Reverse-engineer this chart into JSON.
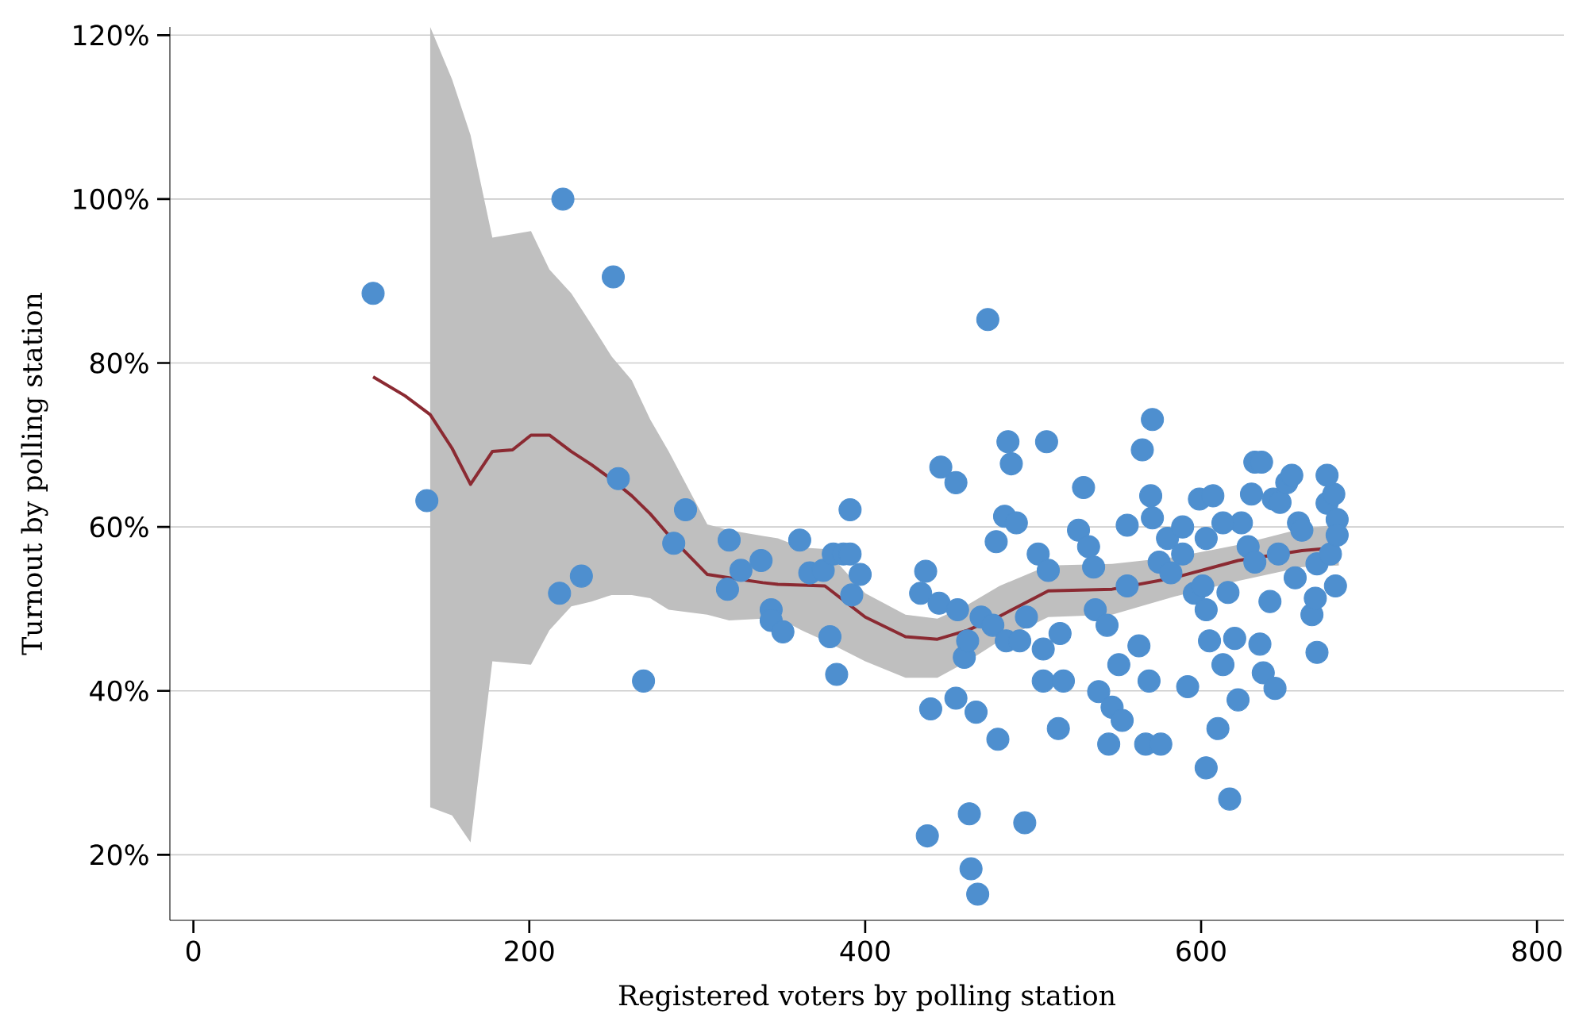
{
  "chart_data": {
    "type": "scatter",
    "xlabel": "Registered voters by polling station",
    "ylabel": "Turnout by polling station",
    "xlim": [
      -14,
      816
    ],
    "xticks": [
      0,
      200,
      400,
      600,
      800
    ],
    "ylim": [
      12,
      121
    ],
    "yticks": [
      {
        "value": 20,
        "label": "20%"
      },
      {
        "value": 40,
        "label": "40%"
      },
      {
        "value": 60,
        "label": "60%"
      },
      {
        "value": 80,
        "label": "80%"
      },
      {
        "value": 100,
        "label": "100%"
      },
      {
        "value": 120,
        "label": "120%"
      }
    ],
    "grid": "y",
    "series": [
      {
        "marker": "circle",
        "color": "#4e8fcf",
        "x": [
          107,
          139,
          220,
          250,
          253,
          218,
          231,
          268,
          286,
          293,
          319,
          318,
          326,
          338,
          344,
          344,
          351,
          361,
          367,
          375,
          381,
          387,
          391,
          391,
          392,
          397,
          379,
          383,
          436,
          433,
          444,
          455,
          437,
          439,
          445,
          454,
          454,
          462,
          463,
          467,
          466,
          479,
          473,
          459,
          461,
          469,
          476,
          478,
          483,
          485,
          487,
          490,
          484,
          492,
          496,
          495,
          508,
          503,
          509,
          506,
          506,
          515,
          516,
          518,
          527,
          530,
          533,
          536,
          537,
          539,
          544,
          545,
          547,
          551,
          553,
          556,
          556,
          563,
          565,
          567,
          570,
          571,
          569,
          571,
          575,
          576,
          580,
          582,
          589,
          592,
          596,
          599,
          601,
          603,
          603,
          605,
          607,
          610,
          613,
          616,
          617,
          620,
          622,
          624,
          628,
          630,
          632,
          635,
          636,
          637,
          641,
          643,
          644,
          647,
          651,
          654,
          656,
          658,
          660,
          666,
          669,
          675,
          679,
          681,
          669,
          668,
          675,
          677,
          680,
          681,
          603,
          613,
          589,
          646,
          632
        ],
        "values": [
          88.5,
          63.2,
          100,
          90.5,
          65.9,
          51.9,
          54.0,
          41.2,
          58.0,
          62.1,
          58.4,
          52.4,
          54.7,
          55.9,
          49.9,
          48.6,
          47.2,
          58.4,
          54.4,
          54.7,
          56.7,
          56.7,
          56.7,
          62.1,
          51.7,
          54.2,
          46.6,
          42.0,
          54.6,
          51.9,
          50.7,
          49.9,
          22.3,
          37.8,
          67.3,
          65.4,
          39.1,
          25.0,
          18.3,
          15.2,
          37.4,
          34.1,
          85.3,
          44.1,
          46.1,
          49.0,
          48.0,
          58.2,
          61.3,
          70.4,
          67.7,
          60.5,
          46.1,
          46.1,
          49.0,
          23.9,
          70.4,
          56.7,
          54.7,
          45.1,
          41.2,
          35.4,
          47.0,
          41.2,
          59.6,
          64.8,
          57.6,
          55.1,
          49.9,
          39.9,
          48.0,
          33.5,
          38.0,
          43.2,
          36.4,
          60.2,
          52.8,
          45.5,
          69.4,
          33.5,
          63.8,
          73.1,
          41.2,
          61.1,
          55.7,
          33.5,
          58.6,
          54.4,
          60.0,
          40.5,
          51.9,
          63.4,
          52.8,
          49.9,
          30.6,
          46.1,
          63.8,
          35.4,
          43.2,
          52.0,
          26.8,
          46.4,
          38.9,
          60.5,
          57.6,
          64.0,
          67.9,
          45.7,
          67.9,
          42.2,
          50.9,
          63.4,
          40.3,
          63.0,
          65.4,
          66.3,
          53.8,
          60.5,
          59.6,
          49.3,
          44.7,
          62.9,
          64.0,
          60.9,
          55.5,
          51.3,
          66.3,
          56.7,
          52.8,
          59.0,
          58.6,
          60.5,
          56.7,
          56.7,
          55.7
        ]
      },
      {
        "type": "line",
        "marker": "none",
        "color": "#8b2a32",
        "x": [
          107,
          126,
          141,
          154,
          165,
          178,
          190,
          201,
          212,
          225,
          237,
          249,
          261,
          272,
          283,
          306,
          319,
          339,
          348,
          362,
          376,
          400,
          424,
          443,
          461,
          480,
          509,
          547,
          584,
          622,
          660,
          682
        ],
        "values": [
          78.3,
          76.0,
          73.7,
          69.6,
          65.2,
          69.2,
          69.4,
          71.2,
          71.2,
          69.2,
          67.6,
          65.8,
          63.8,
          61.6,
          59.0,
          54.2,
          53.8,
          53.2,
          53.0,
          52.9,
          52.8,
          49.0,
          46.6,
          46.3,
          47.4,
          49.1,
          52.2,
          52.4,
          53.8,
          55.9,
          57.1,
          57.5
        ],
        "lower": [
          null,
          null,
          25.8,
          24.8,
          21.5,
          43.6,
          43.4,
          43.2,
          47.4,
          50.3,
          50.9,
          51.7,
          51.7,
          51.3,
          49.9,
          49.3,
          48.6,
          48.8,
          48.9,
          47.4,
          46.1,
          43.6,
          41.6,
          41.6,
          43.6,
          46.1,
          49.0,
          49.3,
          51.5,
          53.4,
          55.1,
          55.3
        ],
        "upper": [
          null,
          null,
          121.0,
          114.6,
          107.8,
          95.3,
          95.7,
          96.1,
          91.4,
          88.5,
          84.7,
          80.8,
          77.9,
          73.1,
          69.2,
          60.3,
          59.6,
          58.9,
          58.6,
          57.5,
          57.3,
          51.9,
          49.3,
          48.8,
          50.5,
          52.8,
          55.3,
          55.5,
          56.3,
          57.8,
          59.8,
          60.3
        ]
      }
    ]
  }
}
